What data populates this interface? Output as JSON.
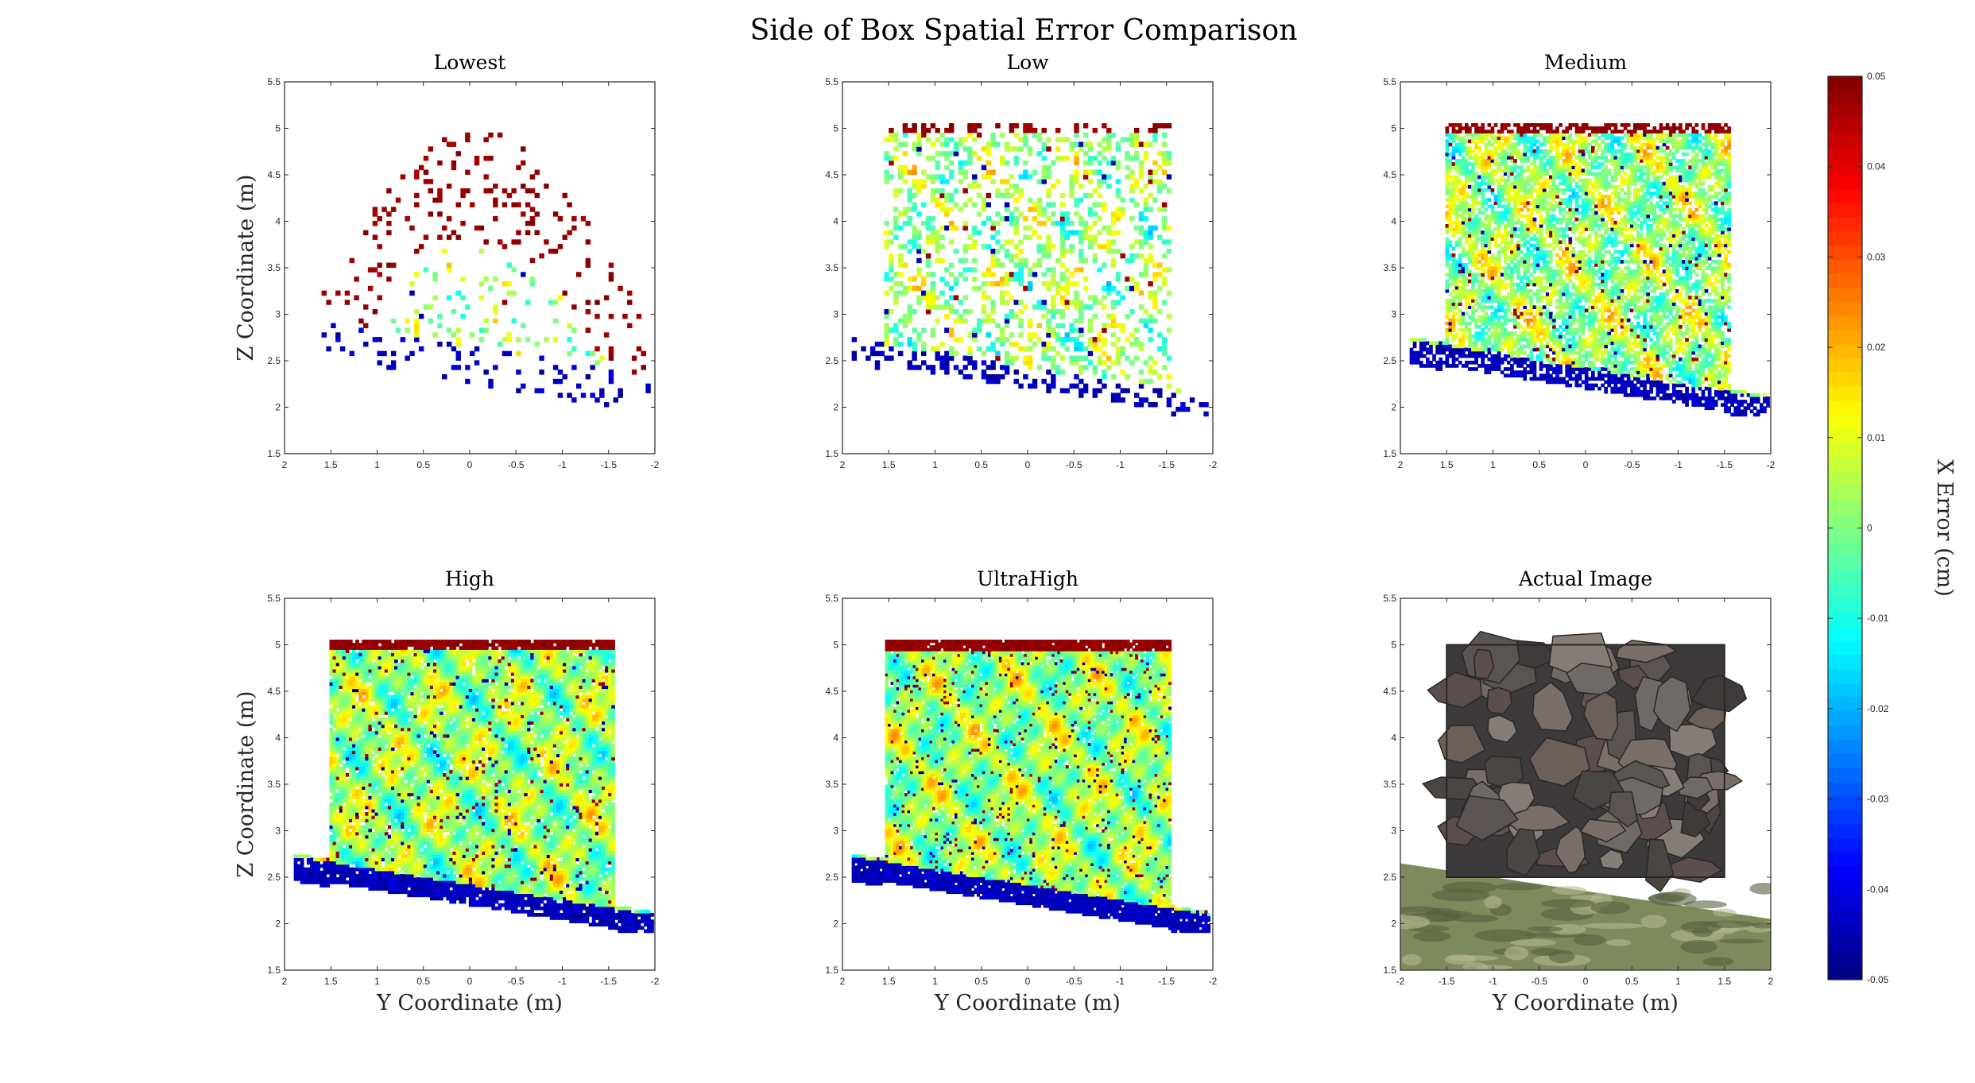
{
  "figure": {
    "title": "Side of Box Spatial Error Comparison"
  },
  "colorbar": {
    "label": "X Error (cm)",
    "range": [
      -0.05,
      0.05
    ],
    "ticks": [
      "0.05",
      "0.04",
      "0.03",
      "0.02",
      "0.01",
      "0",
      "-0.01",
      "-0.02",
      "-0.03",
      "-0.04",
      "-0.05"
    ],
    "colormap": "jet",
    "levels": 64
  },
  "chart_data": [
    {
      "type": "heatmap",
      "title": "Lowest",
      "xlabel": "",
      "ylabel": "Z Coordinate (m)",
      "xlim": [
        -2,
        2
      ],
      "x_reversed": true,
      "ylim": [
        1.5,
        5.5
      ],
      "xticks": [
        "2",
        "1.5",
        "1",
        "0.5",
        "0",
        "-0.5",
        "-1",
        "-1.5",
        "-2"
      ],
      "yticks": [
        "1.5",
        "2",
        "2.5",
        "3",
        "3.5",
        "4",
        "4.5",
        "5",
        "5.5"
      ],
      "density": "very sparse",
      "description_of_field": "scattered points forming a dome; top y≈4.95, base from y=1.9 to -1.9 sloping 2.65→2.05; bottom rows mostly -0.05, top rows mostly +0.05"
    },
    {
      "type": "heatmap",
      "title": "Low",
      "xlabel": "",
      "ylabel": "",
      "xlim": [
        -2,
        2
      ],
      "x_reversed": true,
      "ylim": [
        1.5,
        5.5
      ],
      "xticks": [
        "2",
        "1.5",
        "1",
        "0.5",
        "0",
        "-0.5",
        "-1",
        "-1.5",
        "-2"
      ],
      "yticks": [
        "1.5",
        "2",
        "2.5",
        "3",
        "3.5",
        "4",
        "4.5",
        "5",
        "5.5"
      ],
      "density": "sparse"
    },
    {
      "type": "heatmap",
      "title": "Medium",
      "xlabel": "",
      "ylabel": "",
      "xlim": [
        -2,
        2
      ],
      "x_reversed": true,
      "ylim": [
        1.5,
        5.5
      ],
      "xticks": [
        "2",
        "1.5",
        "1",
        "0.5",
        "0",
        "-0.5",
        "-1",
        "-1.5",
        "-2"
      ],
      "yticks": [
        "1.5",
        "2",
        "2.5",
        "3",
        "3.5",
        "4",
        "4.5",
        "5",
        "5.5"
      ],
      "density": "medium"
    },
    {
      "type": "heatmap",
      "title": "High",
      "xlabel": "Y Coordinate (m)",
      "ylabel": "Z Coordinate (m)",
      "xlim": [
        -2,
        2
      ],
      "x_reversed": true,
      "ylim": [
        1.5,
        5.5
      ],
      "xticks": [
        "2",
        "1.5",
        "1",
        "0.5",
        "0",
        "-0.5",
        "-1",
        "-1.5",
        "-2"
      ],
      "yticks": [
        "1.5",
        "2",
        "2.5",
        "3",
        "3.5",
        "4",
        "4.5",
        "5",
        "5.5"
      ],
      "density": "dense"
    },
    {
      "type": "heatmap",
      "title": "UltraHigh",
      "xlabel": "Y Coordinate (m)",
      "ylabel": "",
      "xlim": [
        -2,
        2
      ],
      "x_reversed": true,
      "ylim": [
        1.5,
        5.5
      ],
      "xticks": [
        "2",
        "1.5",
        "1",
        "0.5",
        "0",
        "-0.5",
        "-1",
        "-1.5",
        "-2"
      ],
      "yticks": [
        "1.5",
        "2",
        "2.5",
        "3",
        "3.5",
        "4",
        "4.5",
        "5",
        "5.5"
      ],
      "density": "very dense"
    },
    {
      "type": "image",
      "title": "Actual Image",
      "xlabel": "Y Coordinate (m)",
      "ylabel": "",
      "xlim": [
        -2,
        2
      ],
      "x_reversed": false,
      "ylim": [
        1.5,
        5.5
      ],
      "xticks": [
        "-2",
        "-1.5",
        "-1",
        "-0.5",
        "0",
        "0.5",
        "1",
        "1.5",
        "2"
      ],
      "yticks": [
        "1.5",
        "2",
        "2.5",
        "3",
        "3.5",
        "4",
        "4.5",
        "5",
        "5.5"
      ],
      "description_of_field": "photo of a box face covered in grey rocks spanning y -1.5 to 1.5 and z 2.5 to 5, on a sloping grassy ground plane"
    }
  ]
}
